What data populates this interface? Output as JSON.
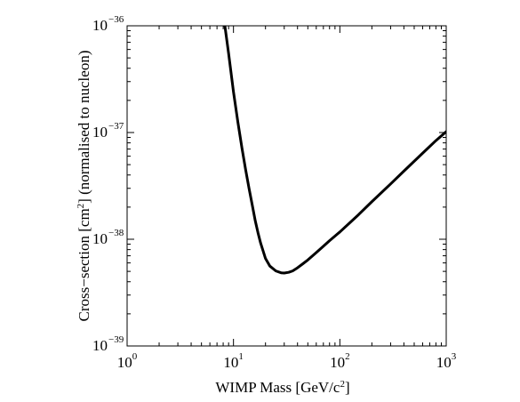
{
  "chart_data": {
    "type": "line",
    "xlabel": "WIMP Mass [GeV/c2]",
    "xlabel_parts": {
      "main": "WIMP Mass [GeV/c",
      "sup": "2",
      "end": "]"
    },
    "ylabel": "Cross-section [cm2] (normalised to nucleon)",
    "ylabel_parts": {
      "main": "Cross−section [cm",
      "sup": "2",
      "end": "] (normalised to nucleon)"
    },
    "x_scale": "log",
    "y_scale": "log",
    "xlim": [
      1,
      1000
    ],
    "ylim": [
      1e-39,
      1e-36
    ],
    "x_ticks": [
      {
        "value": 1,
        "base": "10",
        "exp": "0"
      },
      {
        "value": 10,
        "base": "10",
        "exp": "1"
      },
      {
        "value": 100,
        "base": "10",
        "exp": "2"
      },
      {
        "value": 1000,
        "base": "10",
        "exp": "3"
      }
    ],
    "y_ticks": [
      {
        "value": 1e-39,
        "base": "10",
        "exp": "−39"
      },
      {
        "value": 1e-38,
        "base": "10",
        "exp": "−38"
      },
      {
        "value": 1e-37,
        "base": "10",
        "exp": "−37"
      },
      {
        "value": 1e-36,
        "base": "10",
        "exp": "−36"
      }
    ],
    "grid": false,
    "line_color": "#000000",
    "series": [
      {
        "x": [
          8.3,
          9,
          10,
          11,
          12,
          13,
          14,
          15,
          16,
          17,
          18,
          20,
          22,
          25,
          28,
          30,
          33,
          36,
          40,
          45,
          50,
          60,
          70,
          80,
          100,
          150,
          200,
          300,
          400,
          600,
          800,
          1000
        ],
        "y": [
          1e-36,
          5.5e-37,
          2.4e-37,
          1.25e-37,
          7.2e-38,
          4.5e-38,
          3e-38,
          2.1e-38,
          1.5e-38,
          1.15e-38,
          9.2e-39,
          6.6e-39,
          5.6e-39,
          5.05e-39,
          4.85e-39,
          4.82e-39,
          4.9e-39,
          5.05e-39,
          5.4e-39,
          5.9e-39,
          6.4e-39,
          7.5e-39,
          8.6e-39,
          9.7e-39,
          1.17e-38,
          1.7e-38,
          2.25e-38,
          3.3e-38,
          4.35e-38,
          6.4e-38,
          8.4e-38,
          1.02e-37
        ]
      }
    ]
  }
}
